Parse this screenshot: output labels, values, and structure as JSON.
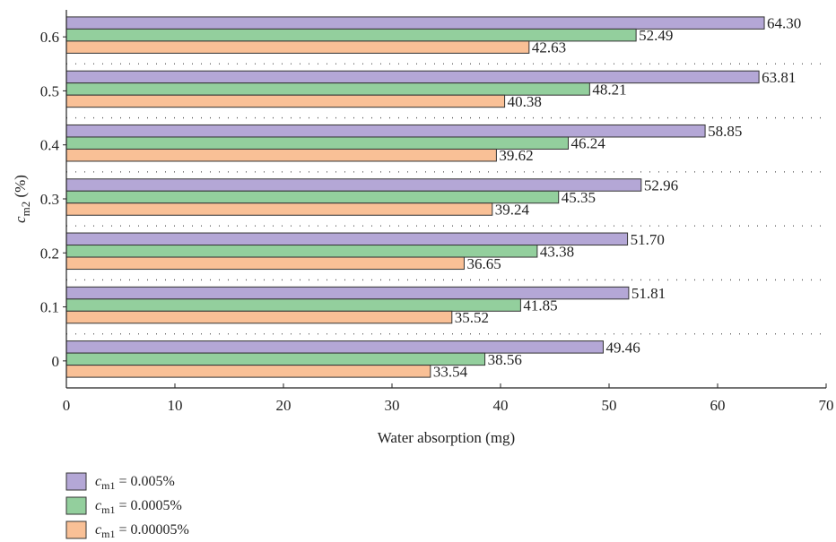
{
  "chart_data": {
    "type": "bar",
    "orientation": "horizontal",
    "categories": [
      "0",
      "0.1",
      "0.2",
      "0.3",
      "0.4",
      "0.5",
      "0.6"
    ],
    "series": [
      {
        "name": "= 0.005%",
        "values": [
          49.46,
          51.81,
          51.7,
          52.96,
          58.85,
          63.81,
          64.3
        ],
        "labels": [
          "49.46",
          "51.81",
          "51.70",
          "52.96",
          "58.85",
          "63.81",
          "64.30"
        ],
        "color": "#b4a7d6"
      },
      {
        "name": "= 0.0005%",
        "values": [
          38.56,
          41.85,
          43.38,
          45.35,
          46.24,
          48.21,
          52.49
        ],
        "labels": [
          "38.56",
          "41.85",
          "43.38",
          "45.35",
          "46.24",
          "48.21",
          "52.49"
        ],
        "color": "#93cf9d"
      },
      {
        "name": "= 0.00005%",
        "values": [
          33.54,
          35.52,
          36.65,
          39.24,
          39.62,
          40.38,
          42.63
        ],
        "labels": [
          "33.54",
          "35.52",
          "36.65",
          "39.24",
          "39.62",
          "40.38",
          "42.63"
        ],
        "color": "#f9c096"
      }
    ],
    "xlabel": "Water absorption (mg)",
    "ylabel_main": "c",
    "ylabel_sub": "m2",
    "ylabel_unit": "(%)",
    "legend_symbol_main": "c",
    "legend_symbol_sub": "m1",
    "xlim": [
      0,
      70
    ],
    "xticks": [
      "0",
      "10",
      "20",
      "30",
      "40",
      "50",
      "60",
      "70"
    ],
    "grid": "dotted horizontal separators between groups",
    "legend_position": "bottom-left"
  }
}
